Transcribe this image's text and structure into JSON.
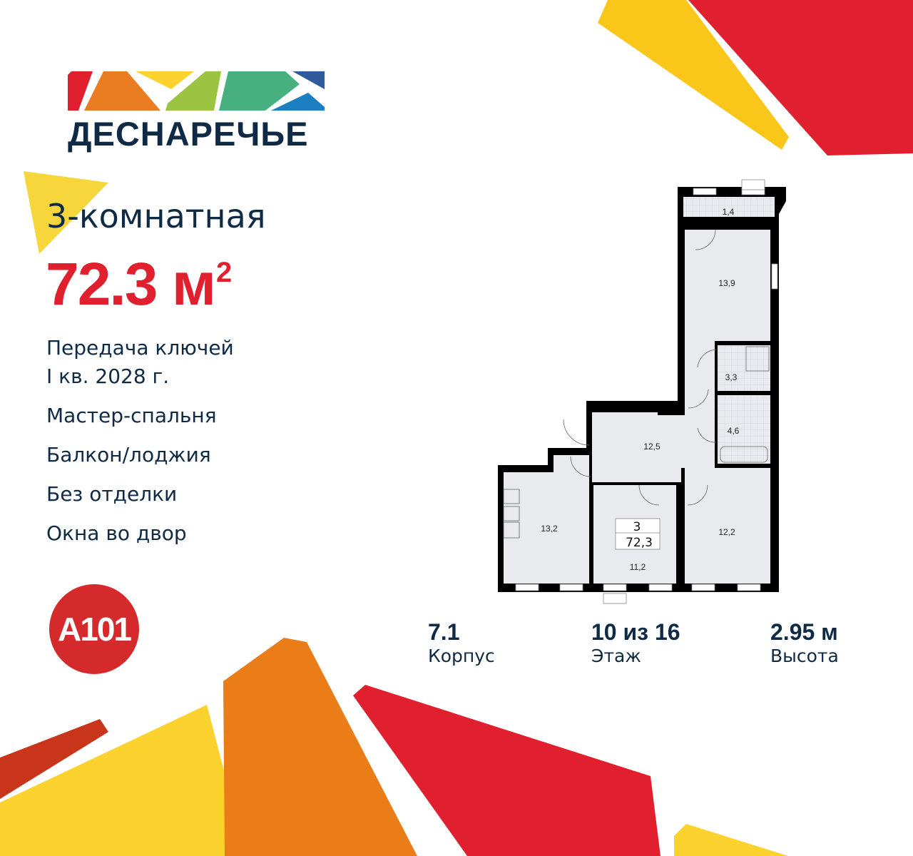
{
  "brand": {
    "name": "ДЕСНАРЕЧЬЕ",
    "colors": [
      "#e0202e",
      "#ea7d22",
      "#fcd22e",
      "#9cc443",
      "#48b07f",
      "#1b7fc1",
      "#2f5a9c"
    ]
  },
  "apartment": {
    "rooms_label": "3-комнатная",
    "area_value": "72.3 м",
    "area_sup": "2",
    "features": [
      "Передача ключей",
      "I кв. 2028 г.",
      "Мастер-спальня",
      "Балкон/лоджия",
      "Без отделки",
      "Окна во двор"
    ]
  },
  "developer_logo": "A101",
  "stats": [
    {
      "value": "7.1",
      "label": "Корпус"
    },
    {
      "value": "10 из 16",
      "label": "Этаж"
    },
    {
      "value": "2.95 м",
      "label": "Высота"
    }
  ],
  "floorplan": {
    "rooms": {
      "balcony": "1,4",
      "bedroom_top": "13,9",
      "bath1": "3,3",
      "bath2": "4,6",
      "hall": "12,5",
      "kitchen": "13,2",
      "bedroom_mid": "11,2",
      "bedroom_right": "12,2"
    },
    "badge_rooms": "3",
    "badge_area": "72,3"
  },
  "colors": {
    "accent_red": "#e0202e",
    "navy": "#0f2a44",
    "yellow": "#fcd22e",
    "orange": "#ea7d22",
    "room_fill": "#e8eaee"
  }
}
